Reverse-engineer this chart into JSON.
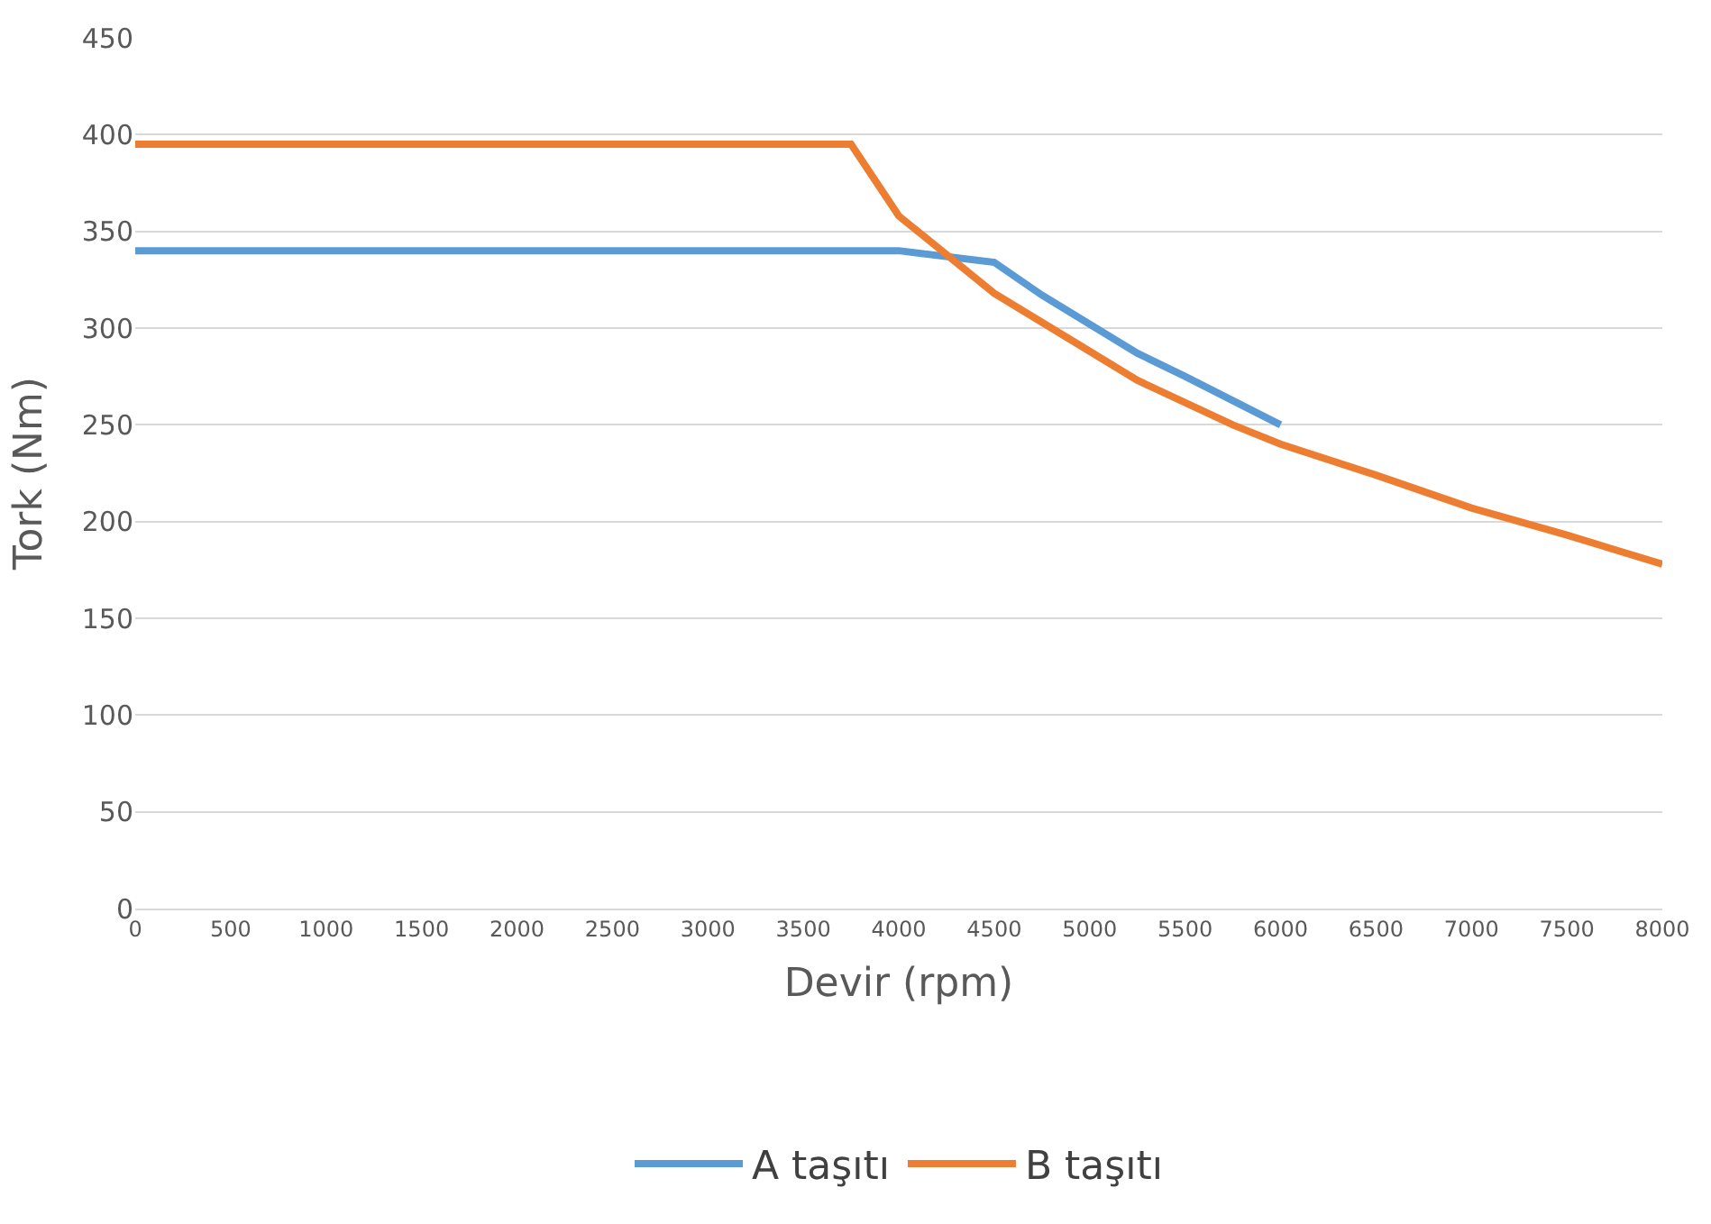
{
  "chart_data": {
    "type": "line",
    "xlabel": "Devir (rpm)",
    "ylabel": "Tork (Nm)",
    "xlim": [
      0,
      8000
    ],
    "xticks": [
      0,
      500,
      1000,
      1500,
      2000,
      2500,
      3000,
      3500,
      4000,
      4500,
      5000,
      5500,
      6000,
      6500,
      7000,
      7500,
      8000
    ],
    "ylim": [
      0,
      450
    ],
    "yticks": [
      0,
      50,
      100,
      150,
      200,
      250,
      300,
      350,
      400,
      450
    ],
    "grid": "y",
    "legend": "bottom",
    "line_style": "solid",
    "series": [
      {
        "name": "A taşıtı",
        "color": "#5b9bd5",
        "x": [
          0,
          4000,
          4500,
          4750,
          5250,
          5500,
          6000
        ],
        "values": [
          340,
          340,
          334,
          317,
          287,
          275,
          250
        ]
      },
      {
        "name": "B taşıtı",
        "color": "#ed7d31",
        "x": [
          0,
          3750,
          4000,
          4500,
          5000,
          5250,
          5750,
          6000,
          6500,
          7000,
          7500,
          8000
        ],
        "values": [
          395,
          395,
          358,
          318,
          288,
          273,
          250,
          240,
          224,
          207,
          193,
          178
        ]
      }
    ]
  }
}
